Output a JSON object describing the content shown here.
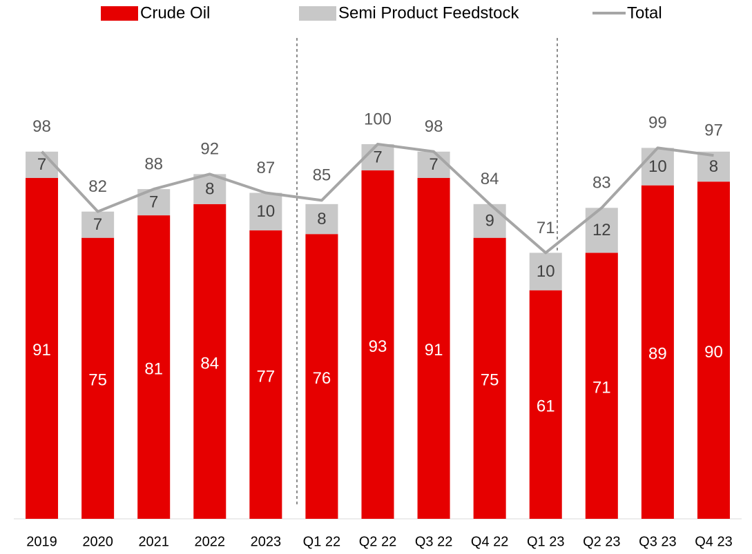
{
  "chart_data": {
    "type": "stacked-bar-line",
    "categories": [
      "2019",
      "2020",
      "2021",
      "2022",
      "2023",
      "Q1 22",
      "Q2 22",
      "Q3 22",
      "Q4 22",
      "Q1 23",
      "Q2 23",
      "Q3 23",
      "Q4 23"
    ],
    "series": [
      {
        "name": "Crude Oil",
        "color": "#e60000",
        "type": "bar",
        "values": [
          91,
          75,
          81,
          84,
          77,
          76,
          93,
          91,
          75,
          61,
          71,
          89,
          90
        ]
      },
      {
        "name": "Semi Product Feedstock",
        "color": "#c8c8c8",
        "type": "bar",
        "values": [
          7,
          7,
          7,
          8,
          10,
          8,
          7,
          7,
          9,
          10,
          12,
          10,
          8
        ]
      },
      {
        "name": "Total",
        "color": "#a6a6a6",
        "type": "line",
        "values": [
          98,
          82,
          88,
          92,
          87,
          85,
          100,
          98,
          84,
          71,
          83,
          99,
          97
        ]
      }
    ],
    "ylim": [
      0,
      130
    ],
    "legend": "top"
  }
}
